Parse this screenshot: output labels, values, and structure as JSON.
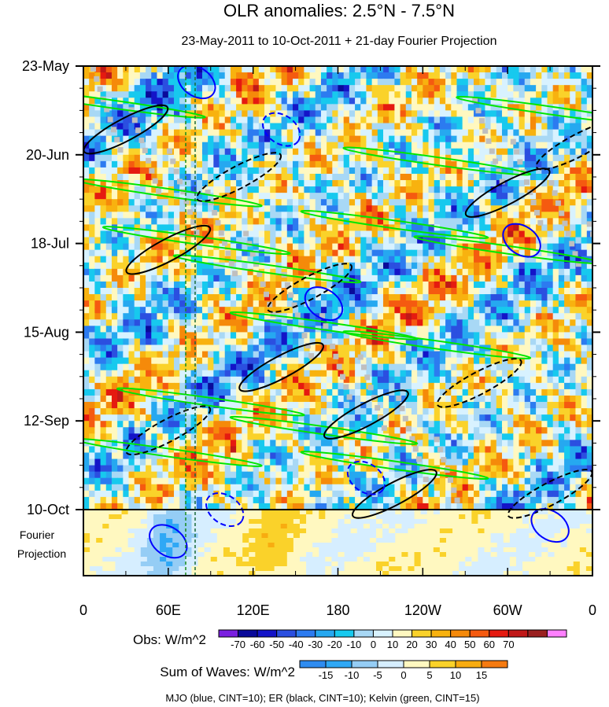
{
  "chart_data": {
    "type": "heatmap",
    "title": "OLR anomalies: 2.5°N - 7.5°N",
    "subtitle": "23-May-2011 to 10-Oct-2011 + 21-day Fourier Projection",
    "x_tick_labels": [
      "0",
      "60E",
      "120E",
      "180",
      "120W",
      "60W",
      "0"
    ],
    "x_ticks_deg_east": [
      0,
      60,
      120,
      180,
      240,
      300,
      360
    ],
    "y_tick_labels": [
      "23-May",
      "20-Jun",
      "18-Jul",
      "15-Aug",
      "12-Sep",
      "10-Oct"
    ],
    "y_ticks_day": [
      0,
      28,
      56,
      84,
      112,
      140
    ],
    "projection_label_1": "Fourier",
    "projection_label_2": "Projection",
    "projection_days": 21,
    "obs_colorbar": {
      "label": "Obs: W/m^2",
      "levels": [
        -70,
        -60,
        -50,
        -40,
        -30,
        -20,
        -10,
        0,
        10,
        20,
        30,
        40,
        50,
        60,
        70
      ],
      "colors": [
        "#7a1fe0",
        "#0a0a9a",
        "#1414c8",
        "#2b4fe0",
        "#2c7bf0",
        "#26a8f0",
        "#17c9ee",
        "#a8d8f5",
        "#d8f2ff",
        "#fff8c0",
        "#fad22a",
        "#f8b20f",
        "#f58a0a",
        "#f55a10",
        "#e51a10",
        "#c01818",
        "#9a2020",
        "#ff80ff"
      ]
    },
    "waves_colorbar": {
      "label": "Sum of Waves: W/m^2",
      "levels": [
        -15,
        -10,
        -5,
        0,
        5,
        10,
        15
      ],
      "colors": [
        "#2f8cf0",
        "#2fa8f5",
        "#95cdf5",
        "#d6eeff",
        "#fff8c0",
        "#fad22a",
        "#f8ac10",
        "#f57a10"
      ]
    },
    "footer_note": "MJO (blue, CINT=10); ER (black, CINT=10); Kelvin (green, CINT=15)",
    "dashed_reference_lon_deg": [
      73,
      79
    ],
    "contour_colors": {
      "mjo": "#0000ff",
      "er": "#000000",
      "kelvin": "#00e600"
    }
  }
}
